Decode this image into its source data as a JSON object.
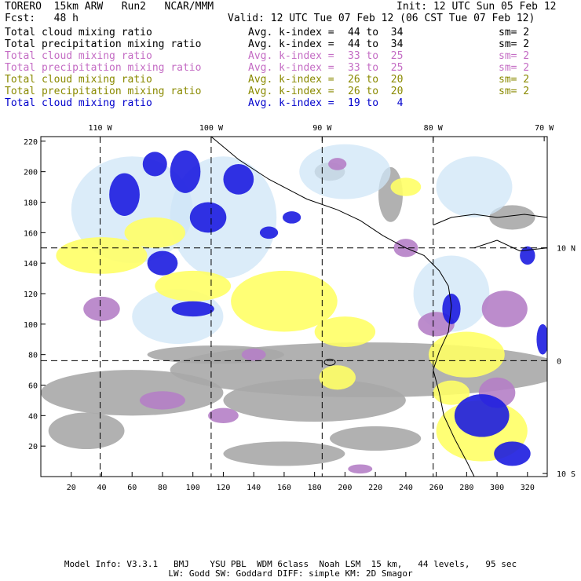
{
  "header": {
    "model": "TORERO  15km ARW   Run2   NCAR/MMM",
    "init": "Init: 12 UTC Sun 05 Feb 12",
    "fcst": "Fcst:   48 h",
    "valid": "Valid: 12 UTC Tue 07 Feb 12 (06 CST Tue 07 Feb 12)"
  },
  "legend": [
    {
      "field": "Total cloud mixing ratio",
      "avg": "Avg. k-index =",
      "range": "44 to  34",
      "sm": "sm= 2",
      "color": "#000000"
    },
    {
      "field": "Total precipitation mixing ratio",
      "avg": "Avg. k-index =",
      "range": "44 to  34",
      "sm": "sm= 2",
      "color": "#000000"
    },
    {
      "field": "Total cloud mixing ratio",
      "avg": "Avg. k-index =",
      "range": "33 to  25",
      "sm": "sm= 2",
      "color": "#c46cc4"
    },
    {
      "field": "Total precipitation mixing ratio",
      "avg": "Avg. k-index =",
      "range": "33 to  25",
      "sm": "sm= 2",
      "color": "#c46cc4"
    },
    {
      "field": "Total cloud mixing ratio",
      "avg": "Avg. k-index =",
      "range": "26 to  20",
      "sm": "sm= 2",
      "color": "#8a8a00"
    },
    {
      "field": "Total precipitation mixing ratio",
      "avg": "Avg. k-index =",
      "range": "26 to  20",
      "sm": "sm= 2",
      "color": "#8a8a00"
    },
    {
      "field": "Total cloud mixing ratio",
      "avg": "Avg. k-index =",
      "range": "19 to   4",
      "sm": "",
      "color": "#0000cc"
    }
  ],
  "footer": {
    "line1": "Model Info: V3.3.1   BMJ    YSU PBL  WDM 6class  Noah LSM  15 km,   44 levels,   95 sec",
    "line2": "LW: Godd SW: Goddard DIFF: simple KM: 2D Smagor"
  },
  "colors": {
    "gray": "#a9a9a9",
    "purple": "#b57fc6",
    "yellow": "#ffff66",
    "blue": "#1c1ce0",
    "lightblue": "#cfe6f7",
    "coast": "#000000"
  },
  "chart_data": {
    "type": "heatmap",
    "title": "",
    "xlim": [
      0,
      333
    ],
    "ylim": [
      0,
      223
    ],
    "x_ticks": [
      20,
      40,
      60,
      80,
      100,
      120,
      140,
      160,
      180,
      200,
      220,
      240,
      260,
      280,
      300,
      320
    ],
    "y_ticks": [
      20,
      40,
      60,
      80,
      100,
      120,
      140,
      160,
      180,
      200,
      220
    ],
    "lon_labels": [
      {
        "label": "110 W",
        "x": 39
      },
      {
        "label": "100 W",
        "x": 112
      },
      {
        "label": "90 W",
        "x": 185
      },
      {
        "label": "80 W",
        "x": 258
      },
      {
        "label": "70 W",
        "x": 331
      }
    ],
    "lat_labels": [
      {
        "label": "10 N",
        "y": 150
      },
      {
        "label": "0",
        "y": 76
      },
      {
        "label": "10 S",
        "y": 2
      }
    ],
    "grid_lines": {
      "x": [
        39,
        112,
        185,
        258
      ],
      "y": [
        150,
        76
      ]
    },
    "regions": [
      {
        "c": "gray",
        "x": 215,
        "y": 70,
        "rx": 130,
        "ry": 18
      },
      {
        "c": "gray",
        "x": 60,
        "y": 55,
        "rx": 60,
        "ry": 15
      },
      {
        "c": "gray",
        "x": 180,
        "y": 50,
        "rx": 60,
        "ry": 14
      },
      {
        "c": "gray",
        "x": 30,
        "y": 30,
        "rx": 25,
        "ry": 12
      },
      {
        "c": "gray",
        "x": 220,
        "y": 25,
        "rx": 30,
        "ry": 8
      },
      {
        "c": "gray",
        "x": 160,
        "y": 15,
        "rx": 40,
        "ry": 8
      },
      {
        "c": "gray",
        "x": 230,
        "y": 185,
        "rx": 8,
        "ry": 18
      },
      {
        "c": "gray",
        "x": 190,
        "y": 200,
        "rx": 10,
        "ry": 6
      },
      {
        "c": "gray",
        "x": 310,
        "y": 170,
        "rx": 15,
        "ry": 8
      },
      {
        "c": "gray",
        "x": 115,
        "y": 80,
        "rx": 45,
        "ry": 6
      },
      {
        "c": "lightblue",
        "x": 60,
        "y": 175,
        "rx": 40,
        "ry": 35
      },
      {
        "c": "lightblue",
        "x": 120,
        "y": 170,
        "rx": 35,
        "ry": 40
      },
      {
        "c": "lightblue",
        "x": 200,
        "y": 200,
        "rx": 30,
        "ry": 18
      },
      {
        "c": "lightblue",
        "x": 285,
        "y": 190,
        "rx": 25,
        "ry": 20
      },
      {
        "c": "lightblue",
        "x": 270,
        "y": 120,
        "rx": 25,
        "ry": 25
      },
      {
        "c": "lightblue",
        "x": 90,
        "y": 105,
        "rx": 30,
        "ry": 18
      },
      {
        "c": "yellow",
        "x": 40,
        "y": 145,
        "rx": 30,
        "ry": 12
      },
      {
        "c": "yellow",
        "x": 75,
        "y": 160,
        "rx": 20,
        "ry": 10
      },
      {
        "c": "yellow",
        "x": 160,
        "y": 115,
        "rx": 35,
        "ry": 20
      },
      {
        "c": "yellow",
        "x": 100,
        "y": 125,
        "rx": 25,
        "ry": 10
      },
      {
        "c": "yellow",
        "x": 200,
        "y": 95,
        "rx": 20,
        "ry": 10
      },
      {
        "c": "yellow",
        "x": 280,
        "y": 80,
        "rx": 25,
        "ry": 15
      },
      {
        "c": "yellow",
        "x": 290,
        "y": 30,
        "rx": 30,
        "ry": 20
      },
      {
        "c": "yellow",
        "x": 270,
        "y": 55,
        "rx": 12,
        "ry": 8
      },
      {
        "c": "yellow",
        "x": 240,
        "y": 190,
        "rx": 10,
        "ry": 6
      },
      {
        "c": "yellow",
        "x": 195,
        "y": 65,
        "rx": 12,
        "ry": 8
      },
      {
        "c": "purple",
        "x": 80,
        "y": 50,
        "rx": 15,
        "ry": 6
      },
      {
        "c": "purple",
        "x": 120,
        "y": 40,
        "rx": 10,
        "ry": 5
      },
      {
        "c": "purple",
        "x": 260,
        "y": 100,
        "rx": 12,
        "ry": 8
      },
      {
        "c": "purple",
        "x": 305,
        "y": 110,
        "rx": 15,
        "ry": 12
      },
      {
        "c": "purple",
        "x": 300,
        "y": 55,
        "rx": 12,
        "ry": 10
      },
      {
        "c": "purple",
        "x": 195,
        "y": 205,
        "rx": 6,
        "ry": 4
      },
      {
        "c": "purple",
        "x": 40,
        "y": 110,
        "rx": 12,
        "ry": 8
      },
      {
        "c": "purple",
        "x": 140,
        "y": 80,
        "rx": 8,
        "ry": 4
      },
      {
        "c": "purple",
        "x": 210,
        "y": 5,
        "rx": 8,
        "ry": 3
      },
      {
        "c": "purple",
        "x": 240,
        "y": 150,
        "rx": 8,
        "ry": 6
      },
      {
        "c": "blue",
        "x": 55,
        "y": 185,
        "rx": 10,
        "ry": 14
      },
      {
        "c": "blue",
        "x": 95,
        "y": 200,
        "rx": 10,
        "ry": 14
      },
      {
        "c": "blue",
        "x": 110,
        "y": 170,
        "rx": 12,
        "ry": 10
      },
      {
        "c": "blue",
        "x": 80,
        "y": 140,
        "rx": 10,
        "ry": 8
      },
      {
        "c": "blue",
        "x": 75,
        "y": 205,
        "rx": 8,
        "ry": 8
      },
      {
        "c": "blue",
        "x": 130,
        "y": 195,
        "rx": 10,
        "ry": 10
      },
      {
        "c": "blue",
        "x": 100,
        "y": 110,
        "rx": 14,
        "ry": 5
      },
      {
        "c": "blue",
        "x": 165,
        "y": 170,
        "rx": 6,
        "ry": 4
      },
      {
        "c": "blue",
        "x": 150,
        "y": 160,
        "rx": 6,
        "ry": 4
      },
      {
        "c": "blue",
        "x": 290,
        "y": 40,
        "rx": 18,
        "ry": 14
      },
      {
        "c": "blue",
        "x": 310,
        "y": 15,
        "rx": 12,
        "ry": 8
      },
      {
        "c": "blue",
        "x": 270,
        "y": 110,
        "rx": 6,
        "ry": 10
      },
      {
        "c": "blue",
        "x": 320,
        "y": 145,
        "rx": 5,
        "ry": 6
      },
      {
        "c": "blue",
        "x": 330,
        "y": 90,
        "rx": 4,
        "ry": 10
      }
    ]
  }
}
